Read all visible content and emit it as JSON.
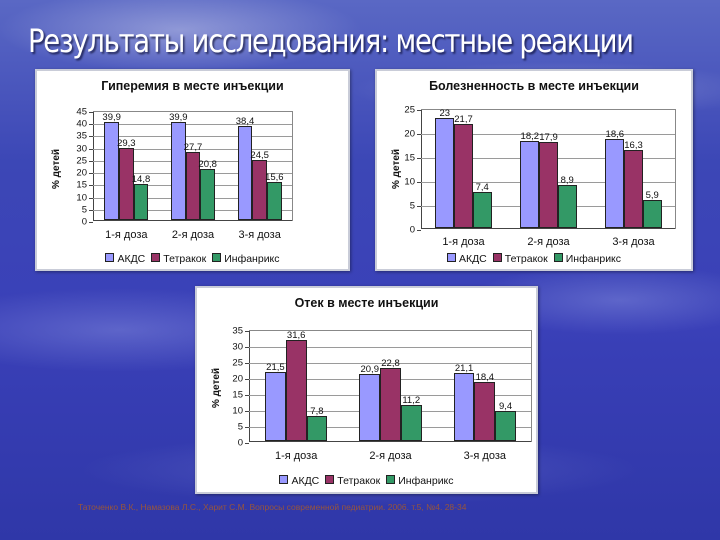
{
  "slide": {
    "title": "Результаты исследования: местные реакции",
    "citation": "Таточенко В.К., Намазова Л.С., Харит С.М. Вопросы современной педиатрии. 2006. т.5, №4. 28-34"
  },
  "colors": {
    "akds": "#9999ff",
    "tetrakok": "#993366",
    "infanrix": "#339966"
  },
  "chart_data": [
    {
      "type": "bar",
      "title": "Гиперемия в месте инъекции",
      "xlabel": "",
      "ylabel": "% детей",
      "ylim": [
        0,
        45
      ],
      "yticks": [
        "0",
        "5",
        "10",
        "15",
        "20",
        "25",
        "30",
        "35",
        "40",
        "45"
      ],
      "categories": [
        "1-я доза",
        "2-я доза",
        "3-я доза"
      ],
      "series": [
        {
          "name": "АКДС",
          "values": [
            39.9,
            39.9,
            38.4
          ],
          "labels": [
            "39,9",
            "39,9",
            "38,4"
          ]
        },
        {
          "name": "Тетракок",
          "values": [
            29.3,
            27.7,
            24.5
          ],
          "labels": [
            "29,3",
            "27,7",
            "24,5"
          ]
        },
        {
          "name": "Инфанрикс",
          "values": [
            14.8,
            20.8,
            15.6
          ],
          "labels": [
            "14,8",
            "20,8",
            "15,6"
          ]
        }
      ],
      "grid": true,
      "legend_position": "bottom"
    },
    {
      "type": "bar",
      "title": "Болезненность в месте инъекции",
      "xlabel": "",
      "ylabel": "% детей",
      "ylim": [
        0,
        25
      ],
      "yticks": [
        "0",
        "5",
        "10",
        "15",
        "20",
        "25"
      ],
      "categories": [
        "1-я доза",
        "2-я доза",
        "3-я доза"
      ],
      "series": [
        {
          "name": "АКДС",
          "values": [
            23,
            18.2,
            18.6
          ],
          "labels": [
            "23",
            "18,2",
            "18,6"
          ]
        },
        {
          "name": "Тетракок",
          "values": [
            21.7,
            17.9,
            16.3
          ],
          "labels": [
            "21,7",
            "17,9",
            "16,3"
          ]
        },
        {
          "name": "Инфанрикс",
          "values": [
            7.4,
            8.9,
            5.9
          ],
          "labels": [
            "7,4",
            "8,9",
            "5,9"
          ]
        }
      ],
      "grid": true,
      "legend_position": "bottom"
    },
    {
      "type": "bar",
      "title": "Отек в месте инъекции",
      "xlabel": "",
      "ylabel": "% детей",
      "ylim": [
        0,
        35
      ],
      "yticks": [
        "0",
        "5",
        "10",
        "15",
        "20",
        "25",
        "30",
        "35"
      ],
      "categories": [
        "1-я доза",
        "2-я доза",
        "3-я доза"
      ],
      "series": [
        {
          "name": "АКДС",
          "values": [
            21.5,
            20.9,
            21.1
          ],
          "labels": [
            "21,5",
            "20,9",
            "21,1"
          ]
        },
        {
          "name": "Тетракок",
          "values": [
            31.6,
            22.8,
            18.4
          ],
          "labels": [
            "31,6",
            "22,8",
            "18,4"
          ]
        },
        {
          "name": "Инфанрикс",
          "values": [
            7.8,
            11.2,
            9.4
          ],
          "labels": [
            "7,8",
            "11,2",
            "9,4"
          ]
        }
      ],
      "grid": true,
      "legend_position": "bottom"
    }
  ]
}
